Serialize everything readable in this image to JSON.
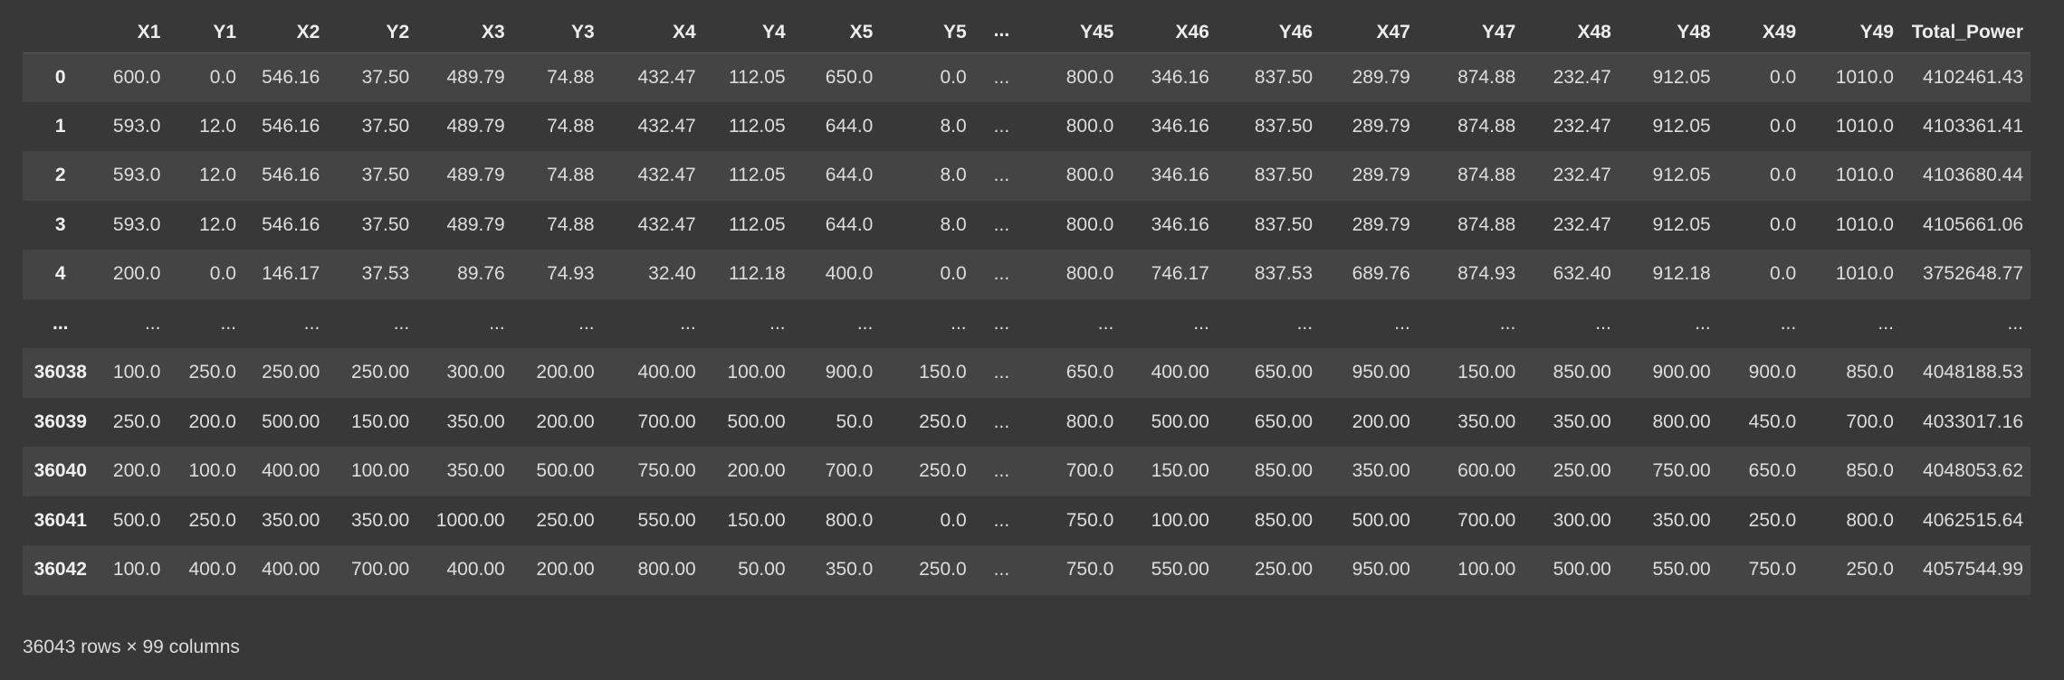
{
  "table": {
    "columns": [
      "",
      "X1",
      "Y1",
      "X2",
      "Y2",
      "X3",
      "Y3",
      "X4",
      "Y4",
      "X5",
      "Y5",
      "...",
      "Y45",
      "X46",
      "Y46",
      "X47",
      "Y47",
      "X48",
      "Y48",
      "X49",
      "Y49",
      "Total_Power"
    ],
    "rows": [
      {
        "index": "0",
        "cells": [
          "600.0",
          "0.0",
          "546.16",
          "37.50",
          "489.79",
          "74.88",
          "432.47",
          "112.05",
          "650.0",
          "0.0",
          "...",
          "800.0",
          "346.16",
          "837.50",
          "289.79",
          "874.88",
          "232.47",
          "912.05",
          "0.0",
          "1010.0",
          "4102461.43"
        ]
      },
      {
        "index": "1",
        "cells": [
          "593.0",
          "12.0",
          "546.16",
          "37.50",
          "489.79",
          "74.88",
          "432.47",
          "112.05",
          "644.0",
          "8.0",
          "...",
          "800.0",
          "346.16",
          "837.50",
          "289.79",
          "874.88",
          "232.47",
          "912.05",
          "0.0",
          "1010.0",
          "4103361.41"
        ]
      },
      {
        "index": "2",
        "cells": [
          "593.0",
          "12.0",
          "546.16",
          "37.50",
          "489.79",
          "74.88",
          "432.47",
          "112.05",
          "644.0",
          "8.0",
          "...",
          "800.0",
          "346.16",
          "837.50",
          "289.79",
          "874.88",
          "232.47",
          "912.05",
          "0.0",
          "1010.0",
          "4103680.44"
        ]
      },
      {
        "index": "3",
        "cells": [
          "593.0",
          "12.0",
          "546.16",
          "37.50",
          "489.79",
          "74.88",
          "432.47",
          "112.05",
          "644.0",
          "8.0",
          "...",
          "800.0",
          "346.16",
          "837.50",
          "289.79",
          "874.88",
          "232.47",
          "912.05",
          "0.0",
          "1010.0",
          "4105661.06"
        ]
      },
      {
        "index": "4",
        "cells": [
          "200.0",
          "0.0",
          "146.17",
          "37.53",
          "89.76",
          "74.93",
          "32.40",
          "112.18",
          "400.0",
          "0.0",
          "...",
          "800.0",
          "746.17",
          "837.53",
          "689.76",
          "874.93",
          "632.40",
          "912.18",
          "0.0",
          "1010.0",
          "3752648.77"
        ]
      },
      {
        "index": "...",
        "cells": [
          "...",
          "...",
          "...",
          "...",
          "...",
          "...",
          "...",
          "...",
          "...",
          "...",
          "...",
          "...",
          "...",
          "...",
          "...",
          "...",
          "...",
          "...",
          "...",
          "...",
          "..."
        ]
      },
      {
        "index": "36038",
        "cells": [
          "100.0",
          "250.0",
          "250.00",
          "250.00",
          "300.00",
          "200.00",
          "400.00",
          "100.00",
          "900.0",
          "150.0",
          "...",
          "650.0",
          "400.00",
          "650.00",
          "950.00",
          "150.00",
          "850.00",
          "900.00",
          "900.0",
          "850.0",
          "4048188.53"
        ]
      },
      {
        "index": "36039",
        "cells": [
          "250.0",
          "200.0",
          "500.00",
          "150.00",
          "350.00",
          "200.00",
          "700.00",
          "500.00",
          "50.0",
          "250.0",
          "...",
          "800.0",
          "500.00",
          "650.00",
          "200.00",
          "350.00",
          "350.00",
          "800.00",
          "450.0",
          "700.0",
          "4033017.16"
        ]
      },
      {
        "index": "36040",
        "cells": [
          "200.0",
          "100.0",
          "400.00",
          "100.00",
          "350.00",
          "500.00",
          "750.00",
          "200.00",
          "700.0",
          "250.0",
          "...",
          "700.0",
          "150.00",
          "850.00",
          "350.00",
          "600.00",
          "250.00",
          "750.00",
          "650.0",
          "850.0",
          "4048053.62"
        ]
      },
      {
        "index": "36041",
        "cells": [
          "500.0",
          "250.0",
          "350.00",
          "350.00",
          "1000.00",
          "250.00",
          "550.00",
          "150.00",
          "800.0",
          "0.0",
          "...",
          "750.0",
          "100.00",
          "850.00",
          "500.00",
          "700.00",
          "300.00",
          "350.00",
          "250.0",
          "800.0",
          "4062515.64"
        ]
      },
      {
        "index": "36042",
        "cells": [
          "100.0",
          "400.0",
          "400.00",
          "700.00",
          "400.00",
          "200.00",
          "800.00",
          "50.00",
          "350.0",
          "250.0",
          "...",
          "750.0",
          "550.00",
          "250.00",
          "950.00",
          "100.00",
          "500.00",
          "550.00",
          "750.0",
          "250.0",
          "4057544.99"
        ]
      }
    ]
  },
  "footer": {
    "shape_text": "36043 rows × 99 columns"
  }
}
